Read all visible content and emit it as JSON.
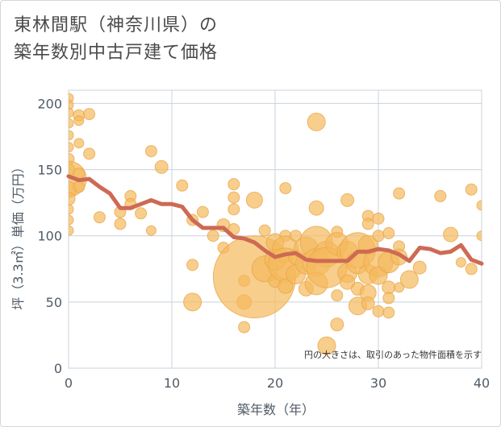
{
  "title": {
    "line1": "東林間駅（神奈川県）の",
    "line2": "築年数別中古戸建て価格"
  },
  "colors": {
    "bubble_fill": "#f5b95c",
    "bubble_stroke": "#e8a84a",
    "line": "#cd6a54",
    "grid": "#c9d3dc",
    "plot_bg": "#ffffff"
  },
  "chart_data": {
    "type": "scatter",
    "xlabel": "築年数（年）",
    "ylabel": "坪（3.3㎡）単価（万円）",
    "xlim": [
      0,
      40
    ],
    "ylim": [
      0,
      210
    ],
    "xticks": [
      0,
      10,
      20,
      30,
      40
    ],
    "yticks": [
      0,
      50,
      100,
      150,
      200
    ],
    "grid": true,
    "annotation": "円の大きさは、取引のあった物件面積を示す",
    "bubbles": [
      {
        "x": 0,
        "y": 204,
        "s": 6
      },
      {
        "x": 0,
        "y": 199,
        "s": 6
      },
      {
        "x": 0,
        "y": 193,
        "s": 6
      },
      {
        "x": 0,
        "y": 185,
        "s": 6
      },
      {
        "x": 0,
        "y": 176,
        "s": 6
      },
      {
        "x": 0,
        "y": 167,
        "s": 6
      },
      {
        "x": 0,
        "y": 158,
        "s": 7
      },
      {
        "x": 0,
        "y": 150,
        "s": 8
      },
      {
        "x": 0,
        "y": 143,
        "s": 22
      },
      {
        "x": 0,
        "y": 135,
        "s": 10
      },
      {
        "x": 0,
        "y": 128,
        "s": 8
      },
      {
        "x": 0,
        "y": 120,
        "s": 6
      },
      {
        "x": 0,
        "y": 112,
        "s": 6
      },
      {
        "x": 0,
        "y": 104,
        "s": 6
      },
      {
        "x": 1,
        "y": 191,
        "s": 7
      },
      {
        "x": 1,
        "y": 187,
        "s": 6
      },
      {
        "x": 1,
        "y": 170,
        "s": 6
      },
      {
        "x": 1,
        "y": 147,
        "s": 7
      },
      {
        "x": 1,
        "y": 137,
        "s": 7
      },
      {
        "x": 2,
        "y": 192,
        "s": 7
      },
      {
        "x": 2,
        "y": 162,
        "s": 7
      },
      {
        "x": 3,
        "y": 114,
        "s": 7
      },
      {
        "x": 5,
        "y": 118,
        "s": 7
      },
      {
        "x": 5,
        "y": 109,
        "s": 7
      },
      {
        "x": 6,
        "y": 130,
        "s": 7
      },
      {
        "x": 6,
        "y": 124,
        "s": 7
      },
      {
        "x": 7,
        "y": 117,
        "s": 7
      },
      {
        "x": 8,
        "y": 164,
        "s": 7
      },
      {
        "x": 8,
        "y": 104,
        "s": 6
      },
      {
        "x": 9,
        "y": 152,
        "s": 8
      },
      {
        "x": 11,
        "y": 138,
        "s": 7
      },
      {
        "x": 12,
        "y": 112,
        "s": 7
      },
      {
        "x": 12,
        "y": 78,
        "s": 7
      },
      {
        "x": 12,
        "y": 50,
        "s": 11
      },
      {
        "x": 13,
        "y": 118,
        "s": 7
      },
      {
        "x": 14,
        "y": 100,
        "s": 7
      },
      {
        "x": 15,
        "y": 108,
        "s": 8
      },
      {
        "x": 15,
        "y": 91,
        "s": 7
      },
      {
        "x": 16,
        "y": 139,
        "s": 7
      },
      {
        "x": 16,
        "y": 129,
        "s": 7
      },
      {
        "x": 16,
        "y": 120,
        "s": 7
      },
      {
        "x": 16,
        "y": 105,
        "s": 7
      },
      {
        "x": 17,
        "y": 66,
        "s": 7
      },
      {
        "x": 17,
        "y": 50,
        "s": 9
      },
      {
        "x": 17,
        "y": 31,
        "s": 7
      },
      {
        "x": 18,
        "y": 69,
        "s": 51
      },
      {
        "x": 18,
        "y": 127,
        "s": 10
      },
      {
        "x": 19,
        "y": 104,
        "s": 7
      },
      {
        "x": 19,
        "y": 75,
        "s": 16
      },
      {
        "x": 20,
        "y": 95,
        "s": 11
      },
      {
        "x": 20,
        "y": 82,
        "s": 13
      },
      {
        "x": 20,
        "y": 66,
        "s": 8
      },
      {
        "x": 21,
        "y": 136,
        "s": 7
      },
      {
        "x": 21,
        "y": 100,
        "s": 7
      },
      {
        "x": 21,
        "y": 90,
        "s": 16
      },
      {
        "x": 21,
        "y": 78,
        "s": 21
      },
      {
        "x": 21,
        "y": 62,
        "s": 9
      },
      {
        "x": 22,
        "y": 100,
        "s": 7
      },
      {
        "x": 22,
        "y": 71,
        "s": 12
      },
      {
        "x": 22,
        "y": 84,
        "s": 9
      },
      {
        "x": 23,
        "y": 90,
        "s": 15
      },
      {
        "x": 23,
        "y": 79,
        "s": 13
      },
      {
        "x": 23,
        "y": 60,
        "s": 9
      },
      {
        "x": 24,
        "y": 186,
        "s": 11
      },
      {
        "x": 24,
        "y": 95,
        "s": 20
      },
      {
        "x": 24,
        "y": 80,
        "s": 17
      },
      {
        "x": 24,
        "y": 64,
        "s": 14
      },
      {
        "x": 24,
        "y": 121,
        "s": 9
      },
      {
        "x": 25,
        "y": 86,
        "s": 16
      },
      {
        "x": 25,
        "y": 76,
        "s": 25
      },
      {
        "x": 25,
        "y": 17,
        "s": 11
      },
      {
        "x": 26,
        "y": 103,
        "s": 7
      },
      {
        "x": 26,
        "y": 94,
        "s": 14
      },
      {
        "x": 26,
        "y": 55,
        "s": 7
      },
      {
        "x": 26,
        "y": 33,
        "s": 8
      },
      {
        "x": 27,
        "y": 127,
        "s": 8
      },
      {
        "x": 27,
        "y": 88,
        "s": 13
      },
      {
        "x": 27,
        "y": 72,
        "s": 12
      },
      {
        "x": 27,
        "y": 65,
        "s": 9
      },
      {
        "x": 28,
        "y": 89,
        "s": 22
      },
      {
        "x": 28,
        "y": 80,
        "s": 14
      },
      {
        "x": 28,
        "y": 60,
        "s": 8
      },
      {
        "x": 28,
        "y": 47,
        "s": 11
      },
      {
        "x": 29,
        "y": 115,
        "s": 7
      },
      {
        "x": 29,
        "y": 109,
        "s": 7
      },
      {
        "x": 29,
        "y": 93,
        "s": 12
      },
      {
        "x": 29,
        "y": 71,
        "s": 12
      },
      {
        "x": 29,
        "y": 57,
        "s": 10
      },
      {
        "x": 29,
        "y": 49,
        "s": 8
      },
      {
        "x": 30,
        "y": 113,
        "s": 7
      },
      {
        "x": 30,
        "y": 100,
        "s": 7
      },
      {
        "x": 30,
        "y": 80,
        "s": 18
      },
      {
        "x": 30,
        "y": 70,
        "s": 11
      },
      {
        "x": 30,
        "y": 43,
        "s": 7
      },
      {
        "x": 31,
        "y": 102,
        "s": 7
      },
      {
        "x": 31,
        "y": 80,
        "s": 13
      },
      {
        "x": 31,
        "y": 61,
        "s": 8
      },
      {
        "x": 31,
        "y": 53,
        "s": 7
      },
      {
        "x": 31,
        "y": 42,
        "s": 7
      },
      {
        "x": 32,
        "y": 132,
        "s": 7
      },
      {
        "x": 32,
        "y": 92,
        "s": 7
      },
      {
        "x": 32,
        "y": 84,
        "s": 10
      },
      {
        "x": 32,
        "y": 61,
        "s": 6
      },
      {
        "x": 33,
        "y": 67,
        "s": 11
      },
      {
        "x": 34,
        "y": 76,
        "s": 8
      },
      {
        "x": 36,
        "y": 130,
        "s": 7
      },
      {
        "x": 37,
        "y": 101,
        "s": 9
      },
      {
        "x": 38,
        "y": 80,
        "s": 6
      },
      {
        "x": 39,
        "y": 135,
        "s": 7
      },
      {
        "x": 39,
        "y": 75,
        "s": 7
      },
      {
        "x": 40,
        "y": 123,
        "s": 6
      },
      {
        "x": 40,
        "y": 100,
        "s": 6
      }
    ],
    "series": [
      {
        "x": [
          0,
          1,
          2,
          3,
          4,
          5,
          6,
          7,
          8,
          9,
          10,
          11,
          12,
          13,
          14,
          15,
          16,
          17,
          18,
          19,
          20,
          21,
          22,
          23,
          24,
          25,
          26,
          27,
          28,
          29,
          30,
          31,
          32,
          33,
          34,
          35,
          36,
          37,
          38,
          39,
          40
        ],
        "y": [
          145,
          142,
          143,
          137,
          132,
          121,
          121,
          124,
          127,
          124,
          124,
          122,
          112,
          106,
          106,
          106,
          99,
          98,
          95,
          89,
          84,
          86,
          87,
          82,
          81,
          81,
          81,
          81,
          88,
          88,
          90,
          89,
          86,
          81,
          91,
          90,
          87,
          88,
          93,
          82,
          79
        ]
      }
    ]
  }
}
